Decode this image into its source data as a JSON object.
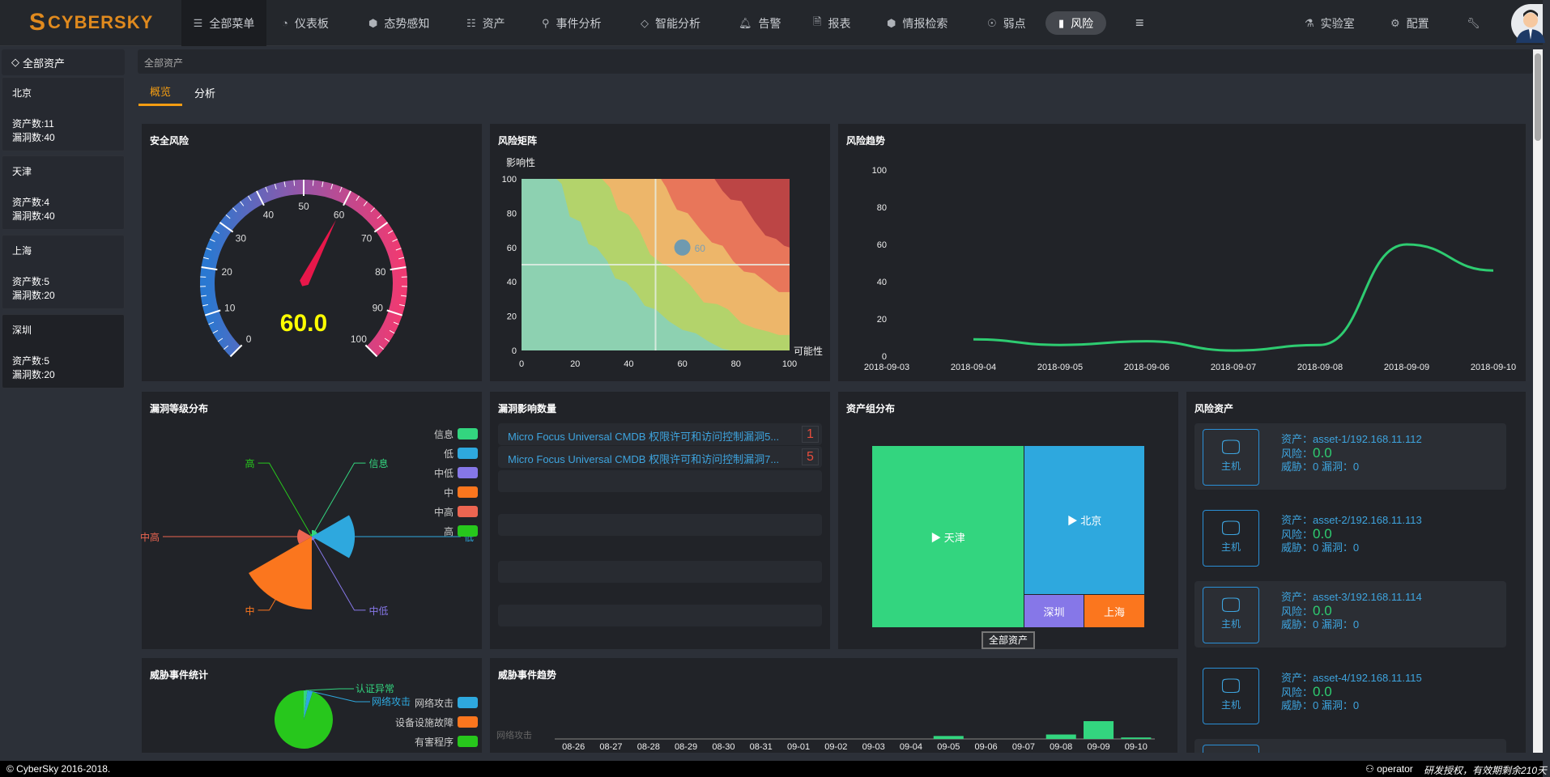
{
  "brand": {
    "name": "CYBERSKY"
  },
  "nav": {
    "items": [
      {
        "label": "全部菜单",
        "icon": "list-icon"
      },
      {
        "label": "仪表板",
        "icon": "dashboard-icon"
      },
      {
        "label": "态势感知",
        "icon": "cube-icon"
      },
      {
        "label": "资产",
        "icon": "server-icon"
      },
      {
        "label": "事件分析",
        "icon": "search-icon"
      },
      {
        "label": "智能分析",
        "icon": "diamond-icon"
      },
      {
        "label": "告警",
        "icon": "bell-icon"
      },
      {
        "label": "报表",
        "icon": "file-pdf-icon"
      },
      {
        "label": "情报检索",
        "icon": "cube-icon"
      },
      {
        "label": "弱点",
        "icon": "bug-icon"
      },
      {
        "label": "风险",
        "icon": "book-icon",
        "active": true
      }
    ],
    "right": [
      {
        "label": "实验室",
        "icon": "flask-icon"
      },
      {
        "label": "配置",
        "icon": "cogs-icon"
      }
    ]
  },
  "sidebar": {
    "title": "全部资产",
    "items": [
      {
        "name": "北京",
        "assets": "资产数:11",
        "vulns": "漏洞数:40"
      },
      {
        "name": "天津",
        "assets": "资产数:4",
        "vulns": "漏洞数:40"
      },
      {
        "name": "上海",
        "assets": "资产数:5",
        "vulns": "漏洞数:20"
      },
      {
        "name": "深圳",
        "assets": "资产数:5",
        "vulns": "漏洞数:20",
        "selected": true
      }
    ]
  },
  "breadcrumb": "全部资产",
  "tabs": [
    {
      "label": "概览",
      "active": true
    },
    {
      "label": "分析"
    }
  ],
  "panels": {
    "security_risk": "安全风险",
    "risk_matrix": "风险矩阵",
    "risk_trend": "风险趋势",
    "vuln_level": "漏洞等级分布",
    "vuln_impact": "漏洞影响数量",
    "asset_group": "资产组分布",
    "risk_assets": "风险资产",
    "threat_stats": "威胁事件统计",
    "threat_trend": "威胁事件趋势"
  },
  "vuln_impact": [
    {
      "name": "Micro Focus Universal CMDB 权限许可和访问控制漏洞5...",
      "count": "1"
    },
    {
      "name": "Micro Focus Universal CMDB 权限许可和访问控制漏洞7...",
      "count": "5"
    }
  ],
  "risk_assets": [
    {
      "type": "主机",
      "asset": "资产：asset-1/192.168.11.112",
      "risk_label": "风险：",
      "risk": "0.0",
      "stats": "威胁：0   漏洞：0"
    },
    {
      "type": "主机",
      "asset": "资产：asset-2/192.168.11.113",
      "risk_label": "风险：",
      "risk": "0.0",
      "stats": "威胁：0   漏洞：0"
    },
    {
      "type": "主机",
      "asset": "资产：asset-3/192.168.11.114",
      "risk_label": "风险：",
      "risk": "0.0",
      "stats": "威胁：0   漏洞：0"
    },
    {
      "type": "主机",
      "asset": "资产：asset-4/192.168.11.115",
      "risk_label": "风险：",
      "risk": "0.0",
      "stats": "威胁：0   漏洞：0"
    }
  ],
  "treemap": {
    "root": "全部资产",
    "nodes": [
      {
        "name": "▶ 天津",
        "color": "#33d57f"
      },
      {
        "name": "▶ 北京",
        "color": "#2ea8de"
      },
      {
        "name": "深圳",
        "color": "#8677e8"
      },
      {
        "name": "上海",
        "color": "#fb761e"
      }
    ]
  },
  "footer": {
    "copyright": "© CyberSky 2016-2018.",
    "user": "operator",
    "license": "研发授权，有效期剩余210天"
  },
  "chart_data": [
    {
      "type": "gauge",
      "value": 60.0,
      "value_label": "60.0",
      "min": 0,
      "max": 100,
      "ticks": [
        "0",
        "10",
        "20",
        "30",
        "40",
        "50",
        "60",
        "70",
        "80",
        "90",
        "100"
      ],
      "colors": [
        "#2a78d1",
        "#9a55a6",
        "#ef3a72"
      ],
      "pointer_color": "#e8174a"
    },
    {
      "type": "scatter",
      "xlabel": "可能性",
      "ylabel": "影响性",
      "xlim": [
        0,
        100
      ],
      "ylim": [
        0,
        100
      ],
      "xticks": [
        "0",
        "20",
        "40",
        "60",
        "80",
        "100"
      ],
      "yticks": [
        "0",
        "20",
        "40",
        "60",
        "80",
        "100"
      ],
      "points": [
        {
          "x": 60,
          "y": 60,
          "label": "60"
        }
      ],
      "mark_lines": {
        "x": 50,
        "y": 50
      },
      "band_colors": [
        "#8dd1b1",
        "#b3d36b",
        "#edb66a",
        "#e8765a",
        "#bc4545"
      ]
    },
    {
      "type": "line",
      "x": [
        "2018-09-03",
        "2018-09-04",
        "2018-09-05",
        "2018-09-06",
        "2018-09-07",
        "2018-09-08",
        "2018-09-09",
        "2018-09-10"
      ],
      "values": [
        null,
        9,
        6,
        8,
        3,
        6,
        60,
        46
      ],
      "ylim": [
        0,
        100
      ],
      "yticks": [
        "0",
        "20",
        "40",
        "60",
        "80",
        "100"
      ],
      "color": "#2ecc71",
      "smooth": true
    },
    {
      "type": "pie",
      "rose": "radius",
      "categories": [
        "信息",
        "低",
        "中低",
        "中",
        "中高",
        "高"
      ],
      "values": [
        9,
        59,
        5,
        100,
        20,
        3
      ],
      "colors": [
        "#33d57f",
        "#2ea8de",
        "#8677e8",
        "#fb761e",
        "#ec6551",
        "#27c71c"
      ],
      "legend": "right"
    },
    {
      "type": "pie",
      "categories": [
        "认证异常",
        "网络攻击",
        "有害程序"
      ],
      "values": [
        2,
        3,
        95
      ],
      "colors": [
        "#33d57f",
        "#2ea8de",
        "#27c71c"
      ],
      "legend_items": [
        {
          "name": "网络攻击",
          "color": "#2ea8de"
        },
        {
          "name": "设备设施故障",
          "color": "#fb761e"
        },
        {
          "name": "有害程序",
          "color": "#27c71c"
        }
      ]
    },
    {
      "type": "bar",
      "ylabel": "网络攻击",
      "categories": [
        "08-26",
        "08-27",
        "08-28",
        "08-29",
        "08-30",
        "08-31",
        "09-01",
        "09-02",
        "09-03",
        "09-04",
        "09-05",
        "09-06",
        "09-07",
        "09-08",
        "09-09",
        "09-10"
      ],
      "values": [
        0,
        0,
        0,
        0,
        0,
        0,
        0,
        0,
        0,
        0,
        2,
        0,
        0,
        3,
        12,
        1
      ],
      "color": "#33d57f"
    }
  ]
}
